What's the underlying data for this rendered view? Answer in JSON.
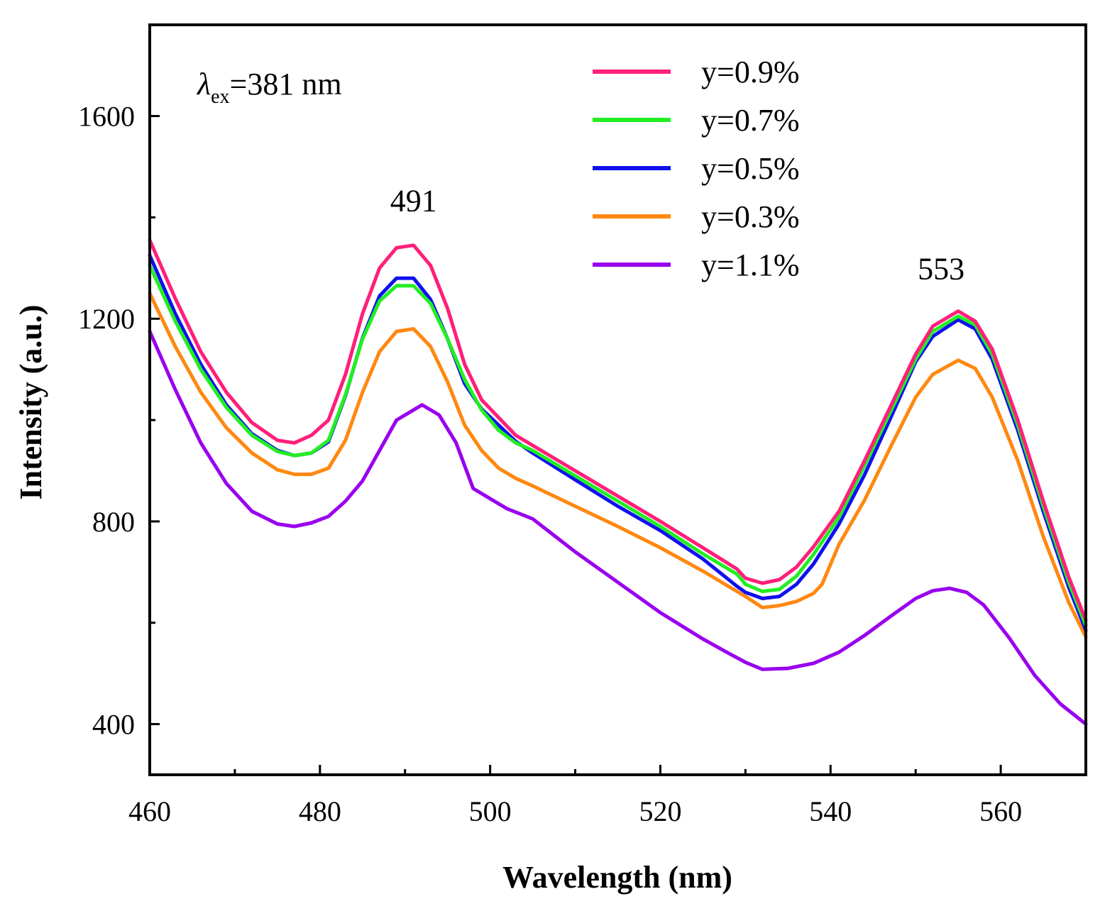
{
  "chart_data": {
    "type": "line",
    "title": "",
    "xlabel": "Wavelength (nm)",
    "ylabel": "Intensity (a.u.)",
    "xlim": [
      460,
      570
    ],
    "ylim": [
      300,
      1780
    ],
    "x_ticks": [
      460,
      480,
      500,
      520,
      540,
      560
    ],
    "y_ticks": [
      400,
      800,
      1200,
      1600
    ],
    "grid": false,
    "legend_position": "top-center",
    "annotations": {
      "excitation_symbol": "λ",
      "excitation_sub": "ex",
      "excitation_value": "=381 nm",
      "peak1": "491",
      "peak2": "553"
    },
    "series": [
      {
        "name": "y=0.9%",
        "color": "#ff1f7a",
        "x": [
          460,
          463,
          466,
          469,
          472,
          475,
          477,
          479,
          481,
          483,
          485,
          487,
          489,
          491,
          493,
          495,
          497,
          499,
          501,
          503,
          505,
          510,
          515,
          520,
          525,
          529,
          530,
          532,
          534,
          536,
          538,
          541,
          544,
          547,
          550,
          552,
          555,
          557,
          559,
          562,
          565,
          568,
          570
        ],
        "y": [
          1355,
          1240,
          1135,
          1055,
          995,
          960,
          955,
          970,
          1000,
          1090,
          1210,
          1300,
          1340,
          1345,
          1305,
          1220,
          1110,
          1040,
          1005,
          970,
          950,
          900,
          850,
          800,
          748,
          706,
          688,
          678,
          685,
          710,
          750,
          820,
          920,
          1025,
          1130,
          1185,
          1215,
          1195,
          1140,
          1000,
          840,
          690,
          605
        ]
      },
      {
        "name": "y=0.7%",
        "color": "#22ee22",
        "x": [
          460,
          463,
          466,
          469,
          472,
          475,
          477,
          479,
          481,
          483,
          485,
          487,
          489,
          491,
          493,
          495,
          497,
          499,
          501,
          503,
          505,
          510,
          515,
          520,
          525,
          529,
          530,
          532,
          534,
          536,
          538,
          541,
          544,
          547,
          550,
          552,
          555,
          557,
          559,
          562,
          565,
          568,
          570
        ],
        "y": [
          1305,
          1195,
          1100,
          1025,
          970,
          938,
          930,
          935,
          960,
          1050,
          1160,
          1235,
          1265,
          1265,
          1230,
          1160,
          1080,
          1020,
          980,
          955,
          940,
          890,
          840,
          790,
          736,
          696,
          676,
          662,
          666,
          692,
          735,
          808,
          910,
          1015,
          1120,
          1175,
          1205,
          1188,
          1130,
          990,
          830,
          680,
          595
        ]
      },
      {
        "name": "y=0.5%",
        "color": "#1010ee",
        "x": [
          460,
          463,
          466,
          469,
          472,
          475,
          477,
          479,
          481,
          483,
          485,
          487,
          489,
          491,
          493,
          495,
          497,
          499,
          501,
          503,
          505,
          510,
          515,
          520,
          525,
          529,
          530,
          532,
          534,
          536,
          538,
          541,
          544,
          547,
          550,
          552,
          555,
          557,
          559,
          562,
          565,
          568,
          570
        ],
        "y": [
          1325,
          1210,
          1110,
          1030,
          973,
          940,
          930,
          935,
          957,
          1048,
          1162,
          1245,
          1280,
          1280,
          1238,
          1160,
          1072,
          1022,
          990,
          958,
          935,
          882,
          830,
          782,
          726,
          672,
          660,
          648,
          652,
          676,
          716,
          795,
          892,
          1002,
          1115,
          1165,
          1198,
          1180,
          1120,
          980,
          820,
          670,
          585
        ]
      },
      {
        "name": "y=0.3%",
        "color": "#ff8811",
        "x": [
          460,
          463,
          466,
          469,
          472,
          475,
          477,
          479,
          481,
          483,
          485,
          487,
          489,
          491,
          493,
          495,
          497,
          499,
          501,
          503,
          505,
          510,
          515,
          520,
          525,
          529,
          530,
          532,
          534,
          536,
          538,
          539,
          541,
          544,
          547,
          550,
          552,
          555,
          557,
          559,
          562,
          565,
          568,
          570
        ],
        "y": [
          1250,
          1145,
          1055,
          985,
          935,
          902,
          893,
          893,
          905,
          960,
          1055,
          1135,
          1175,
          1180,
          1145,
          1075,
          990,
          940,
          905,
          885,
          870,
          830,
          790,
          748,
          702,
          662,
          652,
          630,
          634,
          642,
          658,
          676,
          755,
          842,
          945,
          1045,
          1090,
          1118,
          1102,
          1045,
          920,
          770,
          640,
          572
        ]
      },
      {
        "name": "y=1.1%",
        "color": "#9900ee",
        "x": [
          460,
          463,
          466,
          469,
          472,
          475,
          477,
          479,
          481,
          483,
          485,
          487,
          489,
          491,
          492,
          494,
          496,
          498,
          500,
          502,
          505,
          510,
          515,
          520,
          525,
          528,
          530,
          532,
          535,
          538,
          541,
          544,
          547,
          550,
          552,
          554,
          556,
          558,
          561,
          564,
          567,
          570
        ],
        "y": [
          1175,
          1060,
          955,
          875,
          820,
          795,
          790,
          797,
          810,
          840,
          880,
          940,
          1000,
          1020,
          1030,
          1010,
          955,
          865,
          845,
          825,
          805,
          740,
          680,
          620,
          568,
          540,
          522,
          508,
          510,
          520,
          542,
          575,
          612,
          648,
          663,
          668,
          660,
          635,
          570,
          496,
          440,
          400
        ]
      }
    ]
  }
}
